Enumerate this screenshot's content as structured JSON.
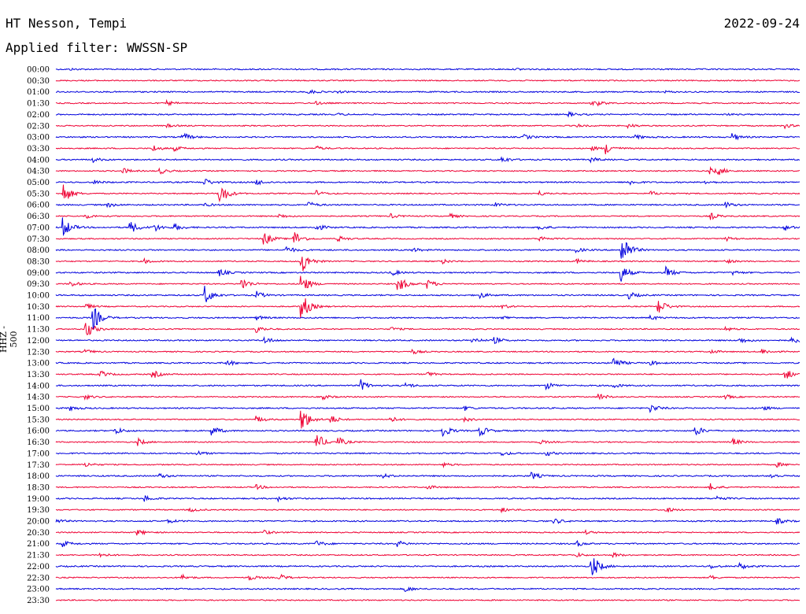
{
  "header": {
    "station": "HT Nesson, Tempi",
    "date": "2022-09-24",
    "filter_label": "Applied filter: WWSSN-SP"
  },
  "axis": {
    "channel_label": "HHZ - 500"
  },
  "colors": {
    "even_trace": "#0000dd",
    "odd_trace": "#ee0033"
  },
  "traces": [
    {
      "time": "00:00",
      "events": [
        [
          2,
          0.1
        ],
        [
          62,
          0.12
        ],
        [
          80,
          0.08
        ]
      ]
    },
    {
      "time": "00:30",
      "events": [
        [
          61,
          0.08
        ]
      ]
    },
    {
      "time": "01:00",
      "events": [
        [
          34,
          0.3
        ],
        [
          38,
          0.1
        ],
        [
          82,
          0.1
        ]
      ]
    },
    {
      "time": "01:30",
      "events": [
        [
          15,
          0.3
        ],
        [
          35,
          0.2
        ],
        [
          72,
          0.25
        ],
        [
          73,
          0.2
        ]
      ]
    },
    {
      "time": "02:00",
      "events": [
        [
          38,
          0.12
        ],
        [
          69,
          0.3
        ],
        [
          90,
          0.1
        ]
      ]
    },
    {
      "time": "02:30",
      "events": [
        [
          15,
          0.2
        ],
        [
          70,
          0.2
        ],
        [
          77,
          0.3
        ],
        [
          98,
          0.3
        ]
      ]
    },
    {
      "time": "03:00",
      "events": [
        [
          17,
          0.2
        ],
        [
          17.5,
          0.25
        ],
        [
          63,
          0.3
        ],
        [
          78,
          0.3
        ],
        [
          91,
          0.5
        ]
      ]
    },
    {
      "time": "03:30",
      "events": [
        [
          13,
          0.5
        ],
        [
          16,
          0.3
        ],
        [
          35,
          0.3
        ],
        [
          74,
          0.8
        ],
        [
          72,
          0.3
        ]
      ]
    },
    {
      "time": "04:00",
      "events": [
        [
          5,
          0.3
        ],
        [
          60,
          0.4
        ],
        [
          72,
          0.3
        ]
      ]
    },
    {
      "time": "04:30",
      "events": [
        [
          9,
          0.4
        ],
        [
          14,
          0.4
        ],
        [
          88,
          0.4
        ],
        [
          89,
          0.5
        ]
      ]
    },
    {
      "time": "05:00",
      "events": [
        [
          5,
          0.3
        ],
        [
          20,
          0.5
        ],
        [
          27,
          0.4
        ],
        [
          77,
          0.4
        ],
        [
          87,
          0.3
        ]
      ]
    },
    {
      "time": "05:30",
      "events": [
        [
          1,
          1.5
        ],
        [
          22,
          1.8
        ],
        [
          35,
          0.4
        ],
        [
          65,
          0.3
        ],
        [
          80,
          0.3
        ]
      ]
    },
    {
      "time": "06:00",
      "events": [
        [
          7,
          0.3
        ],
        [
          20,
          0.2
        ],
        [
          34,
          0.4
        ],
        [
          59,
          0.3
        ],
        [
          90,
          0.4
        ]
      ]
    },
    {
      "time": "06:30",
      "events": [
        [
          4,
          0.3
        ],
        [
          30,
          0.3
        ],
        [
          45,
          0.3
        ],
        [
          53,
          0.3
        ],
        [
          88,
          0.5
        ]
      ]
    },
    {
      "time": "07:00",
      "events": [
        [
          1,
          1.4
        ],
        [
          10,
          0.9
        ],
        [
          13,
          0.7
        ],
        [
          16,
          0.5
        ],
        [
          35,
          0.5
        ],
        [
          65,
          0.4
        ],
        [
          98,
          0.4
        ]
      ]
    },
    {
      "time": "07:30",
      "events": [
        [
          28,
          1.0
        ],
        [
          32,
          1.2
        ],
        [
          38,
          0.4
        ],
        [
          65,
          0.4
        ],
        [
          90,
          0.3
        ]
      ]
    },
    {
      "time": "08:00",
      "events": [
        [
          31,
          0.5
        ],
        [
          48,
          0.3
        ],
        [
          76,
          3.0
        ],
        [
          70,
          0.3
        ]
      ]
    },
    {
      "time": "08:30",
      "events": [
        [
          12,
          0.3
        ],
        [
          33,
          2.0
        ],
        [
          52,
          0.3
        ],
        [
          70,
          0.3
        ],
        [
          90,
          0.3
        ]
      ]
    },
    {
      "time": "09:00",
      "events": [
        [
          22,
          0.5
        ],
        [
          45,
          0.5
        ],
        [
          76,
          1.2
        ],
        [
          82,
          0.8
        ],
        [
          91,
          0.3
        ]
      ]
    },
    {
      "time": "09:30",
      "events": [
        [
          2,
          0.4
        ],
        [
          25,
          0.9
        ],
        [
          33,
          1.5
        ],
        [
          46,
          1.4
        ],
        [
          50,
          0.6
        ]
      ]
    },
    {
      "time": "10:00",
      "events": [
        [
          20,
          1.4
        ],
        [
          27,
          0.5
        ],
        [
          57,
          0.4
        ],
        [
          77,
          0.5
        ]
      ]
    },
    {
      "time": "10:30",
      "events": [
        [
          4,
          0.4
        ],
        [
          33,
          2.2
        ],
        [
          60,
          0.3
        ],
        [
          81,
          1.2
        ]
      ]
    },
    {
      "time": "11:00",
      "events": [
        [
          5,
          1.8
        ],
        [
          27,
          0.3
        ],
        [
          60,
          0.3
        ],
        [
          80,
          0.3
        ]
      ]
    },
    {
      "time": "11:30",
      "events": [
        [
          4,
          1.4
        ],
        [
          27,
          0.5
        ],
        [
          45,
          0.3
        ],
        [
          90,
          0.3
        ]
      ]
    },
    {
      "time": "12:00",
      "events": [
        [
          28,
          0.5
        ],
        [
          56,
          0.4
        ],
        [
          59,
          0.4
        ],
        [
          92,
          0.4
        ],
        [
          99,
          0.5
        ]
      ]
    },
    {
      "time": "12:30",
      "events": [
        [
          4,
          0.3
        ],
        [
          48,
          0.3
        ],
        [
          88,
          0.3
        ],
        [
          95,
          0.4
        ]
      ]
    },
    {
      "time": "13:00",
      "events": [
        [
          23,
          0.4
        ],
        [
          75,
          0.8
        ],
        [
          80,
          0.3
        ]
      ]
    },
    {
      "time": "13:30",
      "events": [
        [
          6,
          0.5
        ],
        [
          13,
          0.6
        ],
        [
          50,
          0.3
        ],
        [
          98,
          0.9
        ]
      ]
    },
    {
      "time": "14:00",
      "events": [
        [
          41,
          0.8
        ],
        [
          47,
          0.4
        ],
        [
          66,
          0.5
        ],
        [
          75,
          0.3
        ]
      ]
    },
    {
      "time": "14:30",
      "events": [
        [
          4,
          0.3
        ],
        [
          36,
          0.3
        ],
        [
          73,
          0.5
        ],
        [
          90,
          0.3
        ]
      ]
    },
    {
      "time": "15:00",
      "events": [
        [
          2,
          0.3
        ],
        [
          55,
          0.3
        ],
        [
          80,
          0.6
        ],
        [
          95,
          0.3
        ]
      ]
    },
    {
      "time": "15:30",
      "events": [
        [
          27,
          0.5
        ],
        [
          33,
          2.0
        ],
        [
          37,
          0.6
        ],
        [
          45,
          0.4
        ],
        [
          55,
          0.3
        ]
      ]
    },
    {
      "time": "16:00",
      "events": [
        [
          8,
          0.5
        ],
        [
          21,
          0.7
        ],
        [
          52,
          0.9
        ],
        [
          57,
          0.8
        ],
        [
          86,
          0.7
        ]
      ]
    },
    {
      "time": "16:30",
      "events": [
        [
          11,
          0.5
        ],
        [
          35,
          1.4
        ],
        [
          38,
          0.6
        ],
        [
          65,
          0.3
        ],
        [
          91,
          0.5
        ]
      ]
    },
    {
      "time": "17:00",
      "events": [
        [
          19,
          0.3
        ],
        [
          60,
          0.3
        ],
        [
          66,
          0.3
        ]
      ]
    },
    {
      "time": "17:30",
      "events": [
        [
          4,
          0.3
        ],
        [
          52,
          0.3
        ],
        [
          97,
          0.3
        ]
      ]
    },
    {
      "time": "18:00",
      "events": [
        [
          14,
          0.3
        ],
        [
          44,
          0.3
        ],
        [
          64,
          0.5
        ],
        [
          96,
          0.4
        ]
      ]
    },
    {
      "time": "18:30",
      "events": [
        [
          27,
          0.3
        ],
        [
          50,
          0.3
        ],
        [
          88,
          0.5
        ]
      ]
    },
    {
      "time": "19:00",
      "events": [
        [
          12,
          0.4
        ],
        [
          30,
          0.3
        ],
        [
          89,
          0.3
        ]
      ]
    },
    {
      "time": "19:30",
      "events": [
        [
          18,
          0.3
        ],
        [
          60,
          0.3
        ],
        [
          82,
          0.4
        ]
      ]
    },
    {
      "time": "20:00",
      "events": [
        [
          0,
          0.3
        ],
        [
          15,
          0.3
        ],
        [
          67,
          0.4
        ],
        [
          97,
          0.4
        ]
      ]
    },
    {
      "time": "20:30",
      "events": [
        [
          11,
          0.4
        ],
        [
          28,
          0.3
        ],
        [
          71,
          0.3
        ]
      ]
    },
    {
      "time": "21:00",
      "events": [
        [
          1,
          0.4
        ],
        [
          35,
          0.4
        ],
        [
          46,
          0.4
        ],
        [
          70,
          0.4
        ]
      ]
    },
    {
      "time": "21:30",
      "events": [
        [
          6,
          0.3
        ],
        [
          70,
          0.3
        ],
        [
          75,
          0.3
        ]
      ]
    },
    {
      "time": "22:00",
      "events": [
        [
          72,
          1.9
        ],
        [
          92,
          0.4
        ],
        [
          88,
          0.3
        ]
      ]
    },
    {
      "time": "22:30",
      "events": [
        [
          17,
          0.4
        ],
        [
          26,
          0.4
        ],
        [
          30,
          0.5
        ],
        [
          88,
          0.3
        ]
      ]
    },
    {
      "time": "23:00",
      "events": [
        [
          47,
          0.4
        ]
      ]
    },
    {
      "time": "23:30",
      "events": []
    }
  ]
}
